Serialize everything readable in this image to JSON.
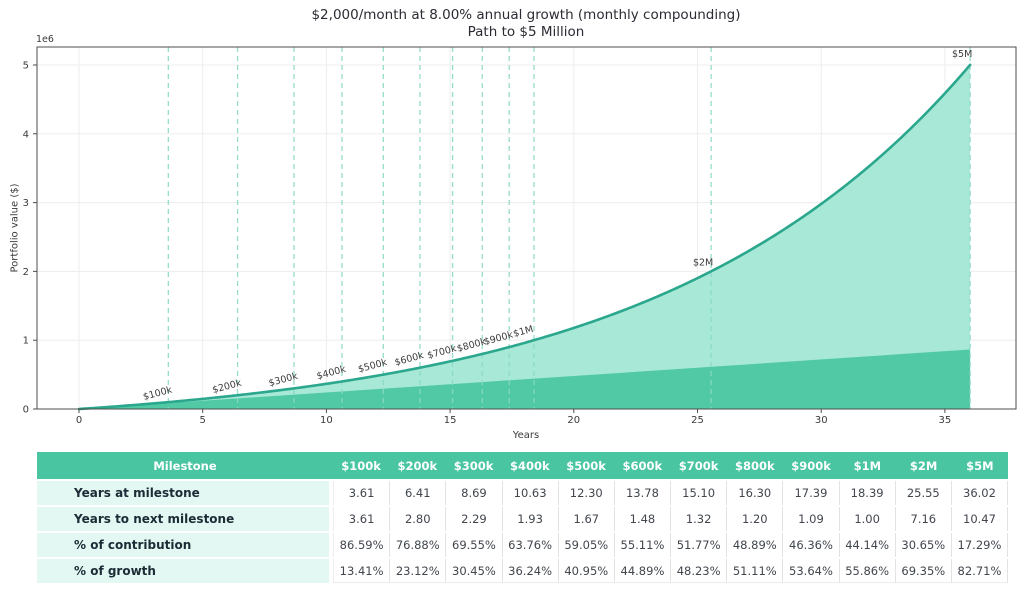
{
  "header": {
    "title_line1": "$2,000/month at 8.00% annual growth (monthly compounding)",
    "title_line2": "Path to $5 Million"
  },
  "chart_data": {
    "type": "area",
    "title": "$2,000/month at 8.00% annual growth (monthly compounding) — Path to $5 Million",
    "xlabel": "Years",
    "ylabel": "Portfolio value ($)",
    "offset_label": "1e6",
    "xticks": [
      0,
      5,
      10,
      15,
      20,
      25,
      30,
      35
    ],
    "yticks": [
      0,
      1,
      2,
      3,
      4,
      5
    ],
    "xlim": [
      -1.7,
      37.9
    ],
    "ylim": [
      0,
      5260000
    ],
    "grid": true,
    "monthly_contribution": 2000,
    "annual_rate_pct": 8.0,
    "compounding": "monthly",
    "end_year": 36.02,
    "end_value": 5000000,
    "total_contributions": 864480,
    "series": [
      {
        "name": "portfolio-value",
        "kind": "compound-growth-area"
      },
      {
        "name": "contributions",
        "kind": "linear-area"
      }
    ],
    "milestones": [
      {
        "label": "$100k",
        "year": 3.61,
        "value": 100000,
        "rotated": true
      },
      {
        "label": "$200k",
        "year": 6.41,
        "value": 200000,
        "rotated": true
      },
      {
        "label": "$300k",
        "year": 8.69,
        "value": 300000,
        "rotated": true
      },
      {
        "label": "$400k",
        "year": 10.63,
        "value": 400000,
        "rotated": true
      },
      {
        "label": "$500k",
        "year": 12.3,
        "value": 500000,
        "rotated": true
      },
      {
        "label": "$600k",
        "year": 13.78,
        "value": 600000,
        "rotated": true
      },
      {
        "label": "$700k",
        "year": 15.1,
        "value": 700000,
        "rotated": true
      },
      {
        "label": "$800k",
        "year": 16.3,
        "value": 800000,
        "rotated": true
      },
      {
        "label": "$900k",
        "year": 17.39,
        "value": 900000,
        "rotated": true
      },
      {
        "label": "$1M",
        "year": 18.39,
        "value": 1000000,
        "rotated": true
      },
      {
        "label": "$2M",
        "year": 25.55,
        "value": 2000000,
        "rotated": false
      },
      {
        "label": "$5M",
        "year": 36.02,
        "value": 5000000,
        "rotated": false
      }
    ]
  },
  "colors": {
    "line": "#2aa78c",
    "growth_fill": "#a7e8d6",
    "contribution_fill": "#50c9a4",
    "milestone_dash": "#8bd9c6",
    "grid": "#ededed",
    "spine": "#4d4d4d",
    "tick_text": "#3a3a3a",
    "annotation_text": "#3b3b3b",
    "table_header_bg": "#49c5a1",
    "table_label_bg": "#e3f8f2"
  },
  "table": {
    "header": [
      "Milestone",
      "$100k",
      "$200k",
      "$300k",
      "$400k",
      "$500k",
      "$600k",
      "$700k",
      "$800k",
      "$900k",
      "$1M",
      "$2M",
      "$5M"
    ],
    "rows": [
      {
        "label": "Years at milestone",
        "values": [
          "3.61",
          "6.41",
          "8.69",
          "10.63",
          "12.30",
          "13.78",
          "15.10",
          "16.30",
          "17.39",
          "18.39",
          "25.55",
          "36.02"
        ]
      },
      {
        "label": "Years to next milestone",
        "values": [
          "3.61",
          "2.80",
          "2.29",
          "1.93",
          "1.67",
          "1.48",
          "1.32",
          "1.20",
          "1.09",
          "1.00",
          "7.16",
          "10.47"
        ]
      },
      {
        "label": "% of contribution",
        "values": [
          "86.59%",
          "76.88%",
          "69.55%",
          "63.76%",
          "59.05%",
          "55.11%",
          "51.77%",
          "48.89%",
          "46.36%",
          "44.14%",
          "30.65%",
          "17.29%"
        ]
      },
      {
        "label": "% of growth",
        "values": [
          "13.41%",
          "23.12%",
          "30.45%",
          "36.24%",
          "40.95%",
          "44.89%",
          "48.23%",
          "51.11%",
          "53.64%",
          "55.86%",
          "69.35%",
          "82.71%"
        ]
      }
    ]
  }
}
